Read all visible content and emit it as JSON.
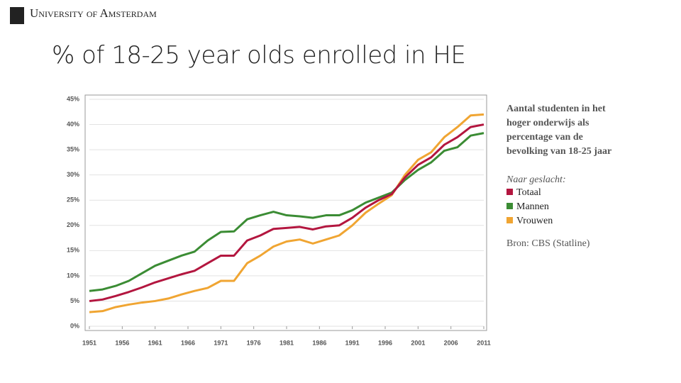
{
  "header": {
    "logo_text": "University of Amsterdam"
  },
  "chart_data": {
    "type": "line",
    "title": "% of 18-25 year olds enrolled in HE",
    "subtitle": "Aantal studenten in het hoger onderwijs als percentage van de bevolking van 18-25 jaar",
    "legend_title": "Naar geslacht:",
    "source": "Bron: CBS (Statline)",
    "x": [
      1951,
      1953,
      1955,
      1957,
      1959,
      1961,
      1963,
      1965,
      1967,
      1969,
      1971,
      1973,
      1975,
      1977,
      1979,
      1981,
      1983,
      1985,
      1987,
      1989,
      1991,
      1993,
      1995,
      1997,
      1999,
      2001,
      2003,
      2005,
      2007,
      2009,
      2011
    ],
    "series": [
      {
        "name": "Totaal",
        "color": "#b3163f",
        "values": [
          5,
          5.3,
          6,
          6.8,
          7.7,
          8.7,
          9.5,
          10.3,
          11,
          12.5,
          14,
          14,
          17,
          18,
          19.3,
          19.5,
          19.7,
          19.2,
          19.8,
          20,
          21.5,
          23.5,
          25,
          26.2,
          29.5,
          32,
          33.5,
          36,
          37.5,
          39.5,
          40
        ]
      },
      {
        "name": "Mannen",
        "color": "#3b8c34",
        "values": [
          7,
          7.3,
          8,
          9,
          10.5,
          12,
          13,
          14,
          14.8,
          17,
          18.7,
          18.8,
          21.2,
          22,
          22.7,
          22,
          21.8,
          21.5,
          22,
          22,
          23,
          24.5,
          25.5,
          26.5,
          29,
          31,
          32.5,
          34.8,
          35.5,
          37.8,
          38.3
        ]
      },
      {
        "name": "Vrouwen",
        "color": "#f0a532",
        "values": [
          2.8,
          3,
          3.8,
          4.3,
          4.7,
          5,
          5.5,
          6.3,
          7,
          7.6,
          9,
          9,
          12.5,
          14,
          15.8,
          16.8,
          17.2,
          16.4,
          17.2,
          18,
          20,
          22.5,
          24.3,
          26,
          30,
          33,
          34.5,
          37.5,
          39.5,
          41.8,
          42
        ]
      }
    ],
    "xlim": [
      1951,
      2011
    ],
    "xticks": [
      1951,
      1956,
      1961,
      1966,
      1971,
      1976,
      1981,
      1986,
      1991,
      1996,
      2001,
      2006,
      2011
    ],
    "ylim": [
      0,
      45
    ],
    "yticks": [
      {
        "value": 0,
        "label": "0%"
      },
      {
        "value": 5,
        "label": "5%"
      },
      {
        "value": 10,
        "label": "10%"
      },
      {
        "value": 15,
        "label": "15%"
      },
      {
        "value": 20,
        "label": "20%"
      },
      {
        "value": 25,
        "label": "25%"
      },
      {
        "value": 30,
        "label": "30%"
      },
      {
        "value": 35,
        "label": "35%"
      },
      {
        "value": 40,
        "label": "40%"
      },
      {
        "value": 45,
        "label": "45%"
      }
    ],
    "grid": true
  }
}
